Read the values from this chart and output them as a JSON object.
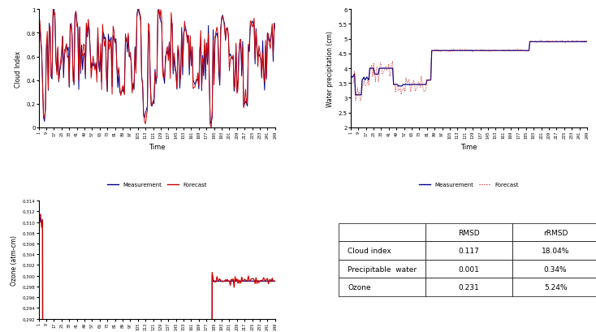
{
  "cloud_ylabel": "Cloud Index",
  "cloud_xlabel": "Time",
  "water_ylabel": "Water precipitation (cm)",
  "water_xlabel": "Time",
  "ozone_ylabel": "Ozone (atm-cm)",
  "ozone_xlabel": "Time",
  "color_measurement": "#00008B",
  "color_forecast_solid": "#CC0000",
  "color_forecast_dot": "#CC0000",
  "table_data": [
    [
      "",
      "RMSD",
      "rRMSD"
    ],
    [
      "Cloud index",
      "0.117",
      "18.04%"
    ],
    [
      "Precipitable  water",
      "0.001",
      "0.34%"
    ],
    [
      "Ozone",
      "0.231",
      "5.24%"
    ]
  ],
  "x_ticks": [
    1,
    9,
    17,
    25,
    33,
    41,
    49,
    57,
    65,
    73,
    81,
    89,
    97,
    105,
    113,
    121,
    129,
    137,
    145,
    153,
    161,
    169,
    177,
    185,
    193,
    201,
    209,
    217,
    225,
    233,
    241,
    249
  ]
}
